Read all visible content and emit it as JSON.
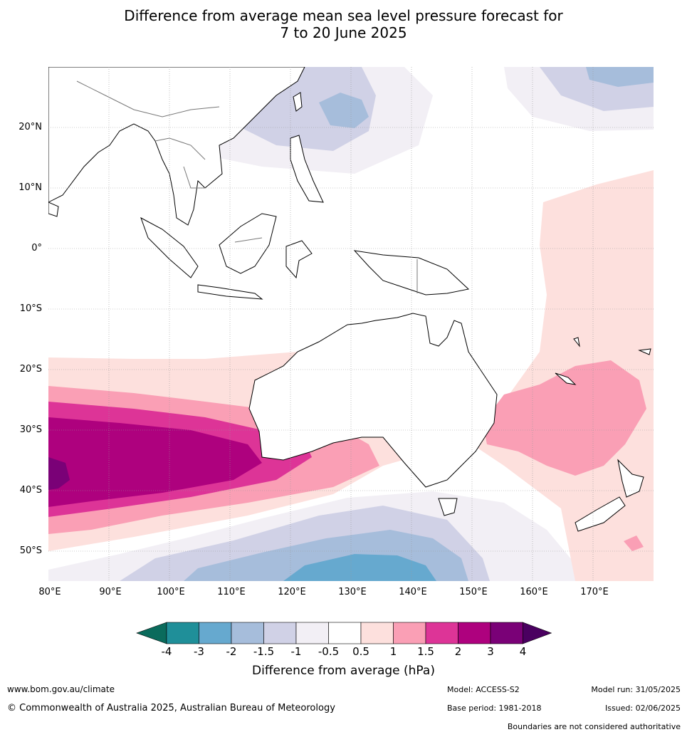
{
  "title": {
    "line1": "Difference from average mean sea level pressure forecast for",
    "line2": "7 to 20 June 2025"
  },
  "map": {
    "lon_range": [
      80,
      180
    ],
    "lat_range": [
      -55,
      30
    ],
    "lat_labels": [
      "20°N",
      "10°N",
      "0°",
      "10°S",
      "20°S",
      "30°S",
      "40°S",
      "50°S"
    ],
    "lon_labels": [
      "80°E",
      "90°E",
      "100°E",
      "110°E",
      "120°E",
      "130°E",
      "140°E",
      "150°E",
      "160°E",
      "170°E"
    ],
    "colors": {
      "land_outline": "#000000",
      "border": "#777777",
      "grid": "#999999"
    }
  },
  "colorbar": {
    "title": "Difference from average (hPa)",
    "ticks": [
      "-4",
      "-3",
      "-2",
      "-1.5",
      "-1",
      "-0.5",
      "0.5",
      "1",
      "1.5",
      "2",
      "3",
      "4"
    ],
    "low_extend_color": "#0a6b5c",
    "high_extend_color": "#4a0060",
    "bins": [
      "#1f8f99",
      "#66a9cf",
      "#a6bddb",
      "#d0d1e6",
      "#f2eff5",
      "#ffffff",
      "#fde0dd",
      "#fa9fb5",
      "#dd3497",
      "#ae017e",
      "#7a0177"
    ]
  },
  "footer": {
    "url": "www.bom.gov.au/climate",
    "copyright": "© Commonwealth of Australia 2025, Australian Bureau of Meteorology",
    "model": "Model: ACCESS-S2",
    "model_run": "Model run: 31/05/2025",
    "base_period": "Base period: 1981-2018",
    "issued": "Issued: 02/06/2025",
    "disclaimer": "Boundaries are not considered authoritative"
  }
}
